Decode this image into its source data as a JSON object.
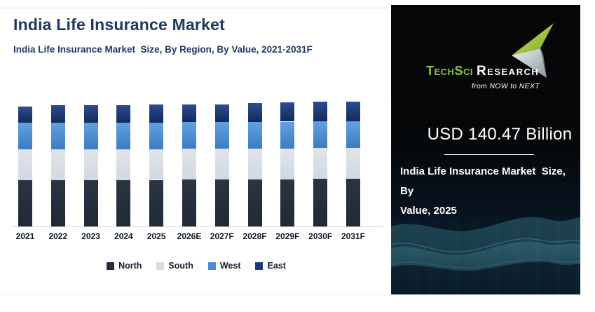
{
  "left_panel": {
    "title": "India Life Insurance Market",
    "subtitle": "India Life Insurance Market  Size, By Region, By Value, 2021-2031F",
    "title_color": "#1F3864"
  },
  "chart_data": {
    "type": "bar",
    "stacked": true,
    "title": "India Life Insurance Market  Size, By Region, By Value, 2021-2031F",
    "unit": "USD Billion",
    "categories": [
      "2021",
      "2022",
      "2023",
      "2024",
      "2025",
      "2026E",
      "2027F",
      "2028F",
      "2029F",
      "2030F",
      "2031F"
    ],
    "series": [
      {
        "name": "North",
        "color": "#232D3B",
        "values": [
          53.5,
          53.7,
          53.7,
          53.7,
          53.7,
          54.1,
          54.1,
          54.3,
          54.5,
          54.9,
          54.9
        ]
      },
      {
        "name": "South",
        "color": "#D8DDE4",
        "values": [
          35.0,
          35.1,
          35.1,
          35.1,
          35.4,
          35.4,
          35.4,
          35.5,
          35.5,
          35.5,
          35.5
        ]
      },
      {
        "name": "West",
        "color": "#4A8FD3",
        "values": [
          30.7,
          30.7,
          30.7,
          30.7,
          30.7,
          30.7,
          30.7,
          30.7,
          30.7,
          30.5,
          30.4
        ]
      },
      {
        "name": "East",
        "color": "#1E3A74",
        "values": [
          18.6,
          19.9,
          20.4,
          20.4,
          20.7,
          20.6,
          20.6,
          21.3,
          22.0,
          22.8,
          23.1
        ]
      }
    ],
    "totals": [
      137.8,
      139.4,
      139.9,
      139.9,
      140.5,
      140.8,
      140.8,
      141.8,
      142.7,
      143.7,
      143.9
    ],
    "legend_position": "bottom",
    "axes": {
      "y_axis_visible": false,
      "x_baseline_visible": true
    },
    "ylim": [
      0,
      150
    ]
  },
  "right_panel": {
    "logo": {
      "brand_primary": "TechSci",
      "brand_secondary": "Research",
      "tagline": "from NOW to NEXT",
      "green": "#8DC63F",
      "icon": "paper-plane-arrow"
    },
    "highlight_value": "USD 140.47 Billion",
    "caption_line1": "India Life Insurance Market  Size, By",
    "caption_line2": "Value, 2025"
  }
}
